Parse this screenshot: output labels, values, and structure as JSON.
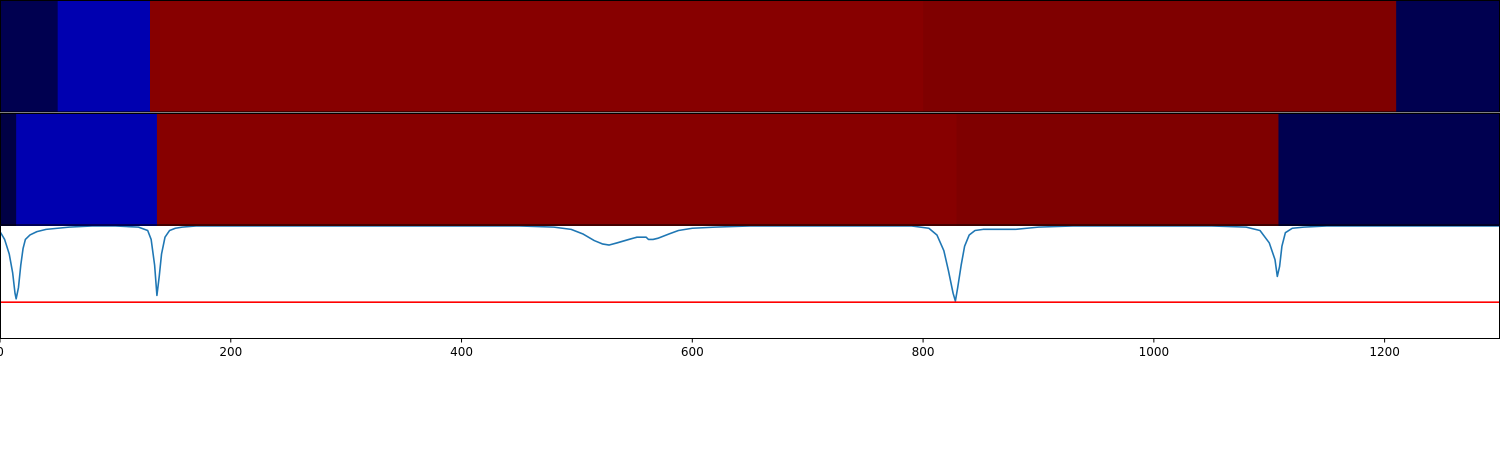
{
  "chart_data": [
    {
      "type": "heatmap",
      "colormap": "seismic",
      "x_range": [
        0,
        1300
      ],
      "segments": [
        {
          "start": 0,
          "end": 50,
          "color": "#000050"
        },
        {
          "start": 50,
          "end": 130,
          "color": "#0000b0"
        },
        {
          "start": 130,
          "end": 800,
          "color": "#870000"
        },
        {
          "start": 800,
          "end": 1210,
          "color": "#7f0000"
        },
        {
          "start": 1210,
          "end": 1300,
          "color": "#000050"
        }
      ]
    },
    {
      "type": "heatmap",
      "colormap": "seismic",
      "x_range": [
        0,
        1300
      ],
      "segments": [
        {
          "start": 0,
          "end": 14,
          "color": "#000044"
        },
        {
          "start": 14,
          "end": 136,
          "color": "#0000b0"
        },
        {
          "start": 136,
          "end": 829,
          "color": "#870000"
        },
        {
          "start": 829,
          "end": 1108,
          "color": "#7f0000"
        },
        {
          "start": 1108,
          "end": 1300,
          "color": "#000050"
        }
      ]
    },
    {
      "type": "line",
      "xlim": [
        0,
        1300
      ],
      "ylim": [
        -1,
        0
      ],
      "xticks": [
        "0",
        "200",
        "400",
        "600",
        "800",
        "1000",
        "1200"
      ],
      "grid": false,
      "series": [
        {
          "color": "#1f77b4",
          "x": [
            0,
            4,
            8,
            11,
            13,
            14,
            16,
            18,
            20,
            22,
            26,
            32,
            40,
            50,
            60,
            80,
            100,
            120,
            128,
            131,
            134,
            136,
            138,
            140,
            143,
            147,
            152,
            158,
            170,
            200,
            300,
            400,
            450,
            480,
            495,
            505,
            515,
            522,
            528,
            535,
            545,
            552,
            560,
            562,
            566,
            570,
            575,
            580,
            588,
            600,
            620,
            650,
            700,
            750,
            790,
            805,
            812,
            818,
            822,
            826,
            828,
            830,
            833,
            836,
            840,
            845,
            852,
            860,
            870,
            880,
            890,
            900,
            930,
            1000,
            1050,
            1080,
            1092,
            1100,
            1105,
            1107,
            1109,
            1111,
            1114,
            1120,
            1130,
            1150,
            1200,
            1250,
            1300
          ],
          "y": [
            -0.05,
            -0.12,
            -0.25,
            -0.42,
            -0.6,
            -0.65,
            -0.55,
            -0.35,
            -0.2,
            -0.12,
            -0.08,
            -0.05,
            -0.03,
            -0.02,
            -0.01,
            0,
            0,
            -0.01,
            -0.04,
            -0.12,
            -0.35,
            -0.62,
            -0.45,
            -0.25,
            -0.1,
            -0.04,
            -0.02,
            -0.01,
            0,
            0,
            0,
            0,
            0,
            -0.01,
            -0.03,
            -0.07,
            -0.13,
            -0.16,
            -0.17,
            -0.15,
            -0.12,
            -0.1,
            -0.1,
            -0.12,
            -0.12,
            -0.11,
            -0.09,
            -0.07,
            -0.04,
            -0.02,
            -0.01,
            0,
            0,
            0,
            0,
            -0.02,
            -0.08,
            -0.22,
            -0.4,
            -0.6,
            -0.67,
            -0.55,
            -0.35,
            -0.18,
            -0.08,
            -0.04,
            -0.03,
            -0.03,
            -0.03,
            -0.03,
            -0.02,
            -0.01,
            0,
            0,
            0,
            -0.01,
            -0.04,
            -0.15,
            -0.3,
            -0.45,
            -0.36,
            -0.18,
            -0.06,
            -0.02,
            -0.01,
            0,
            0,
            0,
            0
          ]
        },
        {
          "color": "#ff0000",
          "x": [
            0,
            1300
          ],
          "y": [
            -0.68,
            -0.68
          ]
        }
      ]
    }
  ]
}
